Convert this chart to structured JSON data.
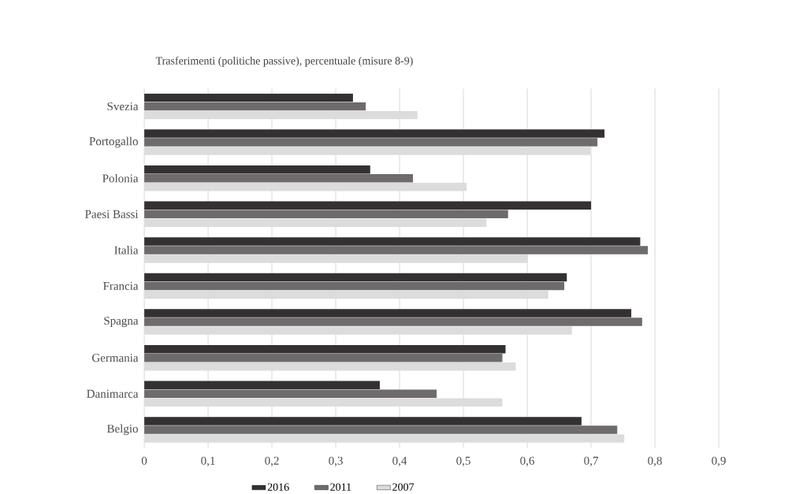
{
  "chart_data": {
    "type": "bar",
    "orientation": "horizontal",
    "title": "Trasferimenti (politiche passive), percentuale (misure 8-9)",
    "categories": [
      "Svezia",
      "Portogallo",
      "Polonia",
      "Paesi Bassi",
      "Italia",
      "Francia",
      "Spagna",
      "Germania",
      "Danimarca",
      "Belgio"
    ],
    "series": [
      {
        "name": "2016",
        "color": "#333132",
        "values": [
          0.327,
          0.721,
          0.354,
          0.7,
          0.777,
          0.662,
          0.763,
          0.566,
          0.369,
          0.685
        ]
      },
      {
        "name": "2011",
        "color": "#6d6b6c",
        "values": [
          0.347,
          0.71,
          0.421,
          0.57,
          0.789,
          0.658,
          0.78,
          0.561,
          0.458,
          0.741
        ]
      },
      {
        "name": "2007",
        "color": "#dcdcdc",
        "values": [
          0.428,
          0.699,
          0.505,
          0.536,
          0.601,
          0.633,
          0.67,
          0.582,
          0.561,
          0.752
        ]
      }
    ],
    "xlim": [
      0,
      0.9
    ],
    "xticks": [
      0,
      {
        "value": 0.1,
        "label": "0,1"
      },
      {
        "value": 0.2,
        "label": "0,2"
      },
      {
        "value": 0.3,
        "label": "0,3"
      },
      {
        "value": 0.4,
        "label": "0,4"
      },
      {
        "value": 0.5,
        "label": "0,5"
      },
      {
        "value": 0.6,
        "label": "0,6"
      },
      {
        "value": 0.7,
        "label": "0,7"
      },
      {
        "value": 0.8,
        "label": "0,8"
      },
      {
        "value": 0.9,
        "label": "0,9"
      }
    ],
    "grid": "x",
    "legend": "bottom"
  }
}
